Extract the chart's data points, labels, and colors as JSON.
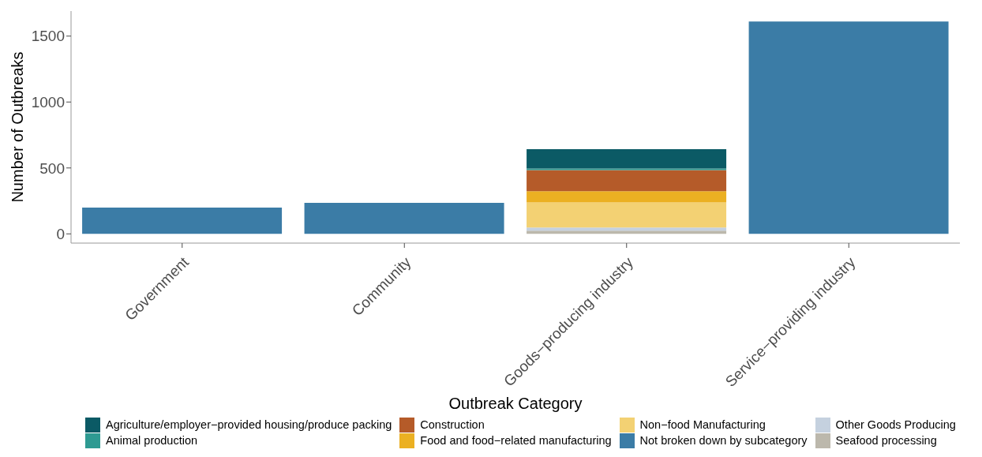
{
  "chart_data": {
    "type": "bar",
    "stacked": true,
    "xlabel": "Outbreak Category",
    "ylabel": "Number of Outbreaks",
    "categories": [
      "Government",
      "Community",
      "Goods−producing industry",
      "Service−providing industry"
    ],
    "series": [
      {
        "name": "Seafood processing",
        "color": "#bcb8ac",
        "values": [
          null,
          null,
          24,
          null
        ]
      },
      {
        "name": "Other Goods Producing",
        "color": "#c5d1df",
        "values": [
          null,
          null,
          24,
          null
        ]
      },
      {
        "name": "Not broken down by subcategory",
        "color": "#3b7ca6",
        "values": [
          200,
          235,
          null,
          1610
        ]
      },
      {
        "name": "Non−food Manufacturing",
        "color": "#f3d173",
        "values": [
          null,
          null,
          190,
          null
        ]
      },
      {
        "name": "Food and food−related manufacturing",
        "color": "#ebb022",
        "values": [
          null,
          null,
          86,
          null
        ]
      },
      {
        "name": "Construction",
        "color": "#b55b29",
        "values": [
          null,
          null,
          159,
          null
        ]
      },
      {
        "name": "Animal production",
        "color": "#2e9a92",
        "values": [
          null,
          null,
          12,
          null
        ]
      },
      {
        "name": "Agriculture/employer−provided housing/produce packing",
        "color": "#0b5a65",
        "values": [
          null,
          null,
          147,
          null
        ]
      }
    ],
    "ylim": [
      -70,
      1690
    ],
    "yticks": [
      0,
      500,
      1000,
      1500
    ],
    "legend": "bottom"
  }
}
